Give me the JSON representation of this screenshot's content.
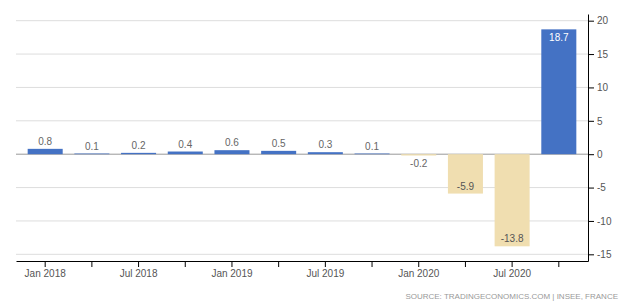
{
  "chart_data": {
    "type": "bar",
    "categories": [
      "Jan 2018",
      null,
      "Jul 2018",
      null,
      "Jan 2019",
      null,
      "Jul 2019",
      null,
      "Jan 2020",
      null,
      "Jul 2020",
      null
    ],
    "values": [
      0.8,
      0.1,
      0.2,
      0.4,
      0.6,
      0.5,
      0.3,
      0.1,
      -0.2,
      -5.9,
      -13.8,
      18.7
    ],
    "colors": [
      "#4472C4",
      "#4472C4",
      "#4472C4",
      "#4472C4",
      "#4472C4",
      "#4472C4",
      "#4472C4",
      "#4472C4",
      "#F0DEB0",
      "#F0DEB0",
      "#F0DEB0",
      "#4472C4"
    ],
    "ylim": [
      -16,
      21
    ],
    "yticks": [
      -15,
      -10,
      -5,
      0,
      5,
      10,
      15,
      20
    ],
    "grid": true,
    "data_labels": true,
    "annotations": [
      "SOURCE:  TRADINGECONOMICS.COM  |  INSEE,  FRANCE"
    ]
  }
}
